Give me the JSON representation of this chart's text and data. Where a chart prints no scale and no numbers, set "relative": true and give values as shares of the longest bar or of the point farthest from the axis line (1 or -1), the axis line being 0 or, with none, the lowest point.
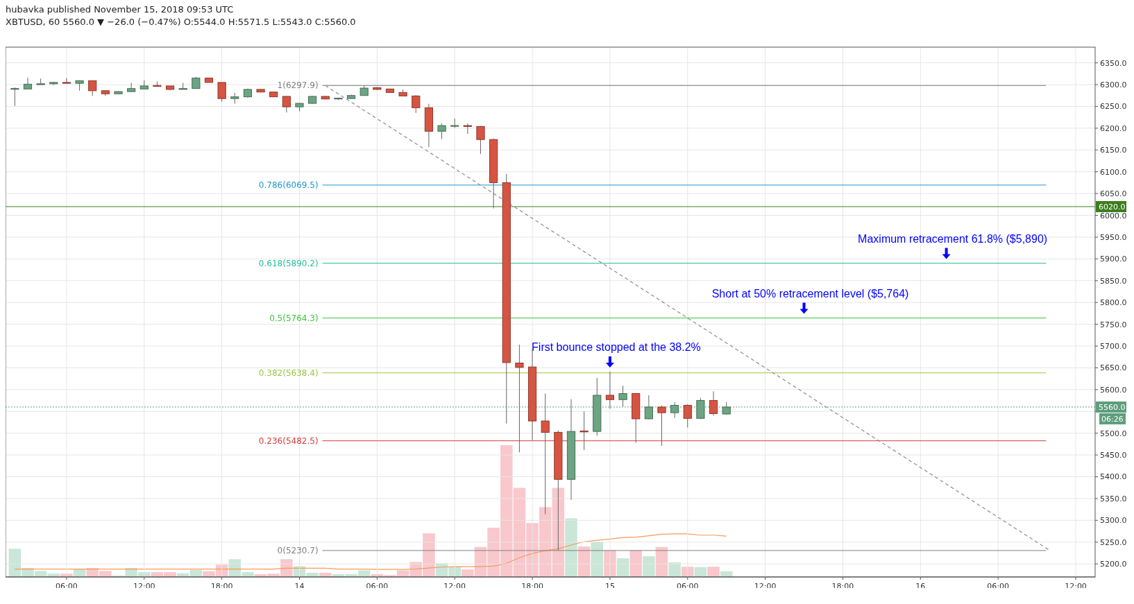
{
  "chart_data": [
    {
      "type": "candlestick",
      "title": "hubavka published November 15, 2018 09:53 UTC",
      "subtitle": "XBTUSD, 60  5560.0 ▼ −26.0 (−0.47%)  O:5544.0  H:5571.5  L:5543.0  C:5560.0",
      "x": [
        "2018-11-13T02:00",
        "2018-11-13T03:00",
        "2018-11-13T04:00",
        "2018-11-13T05:00",
        "2018-11-13T06:00",
        "2018-11-13T07:00",
        "2018-11-13T08:00",
        "2018-11-13T09:00",
        "2018-11-13T10:00",
        "2018-11-13T11:00",
        "2018-11-13T12:00",
        "2018-11-13T13:00",
        "2018-11-13T14:00",
        "2018-11-13T15:00",
        "2018-11-13T16:00",
        "2018-11-13T17:00",
        "2018-11-13T18:00",
        "2018-11-13T19:00",
        "2018-11-13T20:00",
        "2018-11-13T21:00",
        "2018-11-13T22:00",
        "2018-11-13T23:00",
        "2018-11-14T00:00",
        "2018-11-14T01:00",
        "2018-11-14T02:00",
        "2018-11-14T03:00",
        "2018-11-14T04:00",
        "2018-11-14T05:00",
        "2018-11-14T06:00",
        "2018-11-14T07:00",
        "2018-11-14T08:00",
        "2018-11-14T09:00",
        "2018-11-14T10:00",
        "2018-11-14T11:00",
        "2018-11-14T12:00",
        "2018-11-14T13:00",
        "2018-11-14T14:00",
        "2018-11-14T15:00",
        "2018-11-14T16:00",
        "2018-11-14T17:00",
        "2018-11-14T18:00",
        "2018-11-14T19:00",
        "2018-11-14T20:00",
        "2018-11-14T21:00",
        "2018-11-14T22:00",
        "2018-11-14T23:00",
        "2018-11-15T00:00",
        "2018-11-15T01:00",
        "2018-11-15T02:00",
        "2018-11-15T03:00",
        "2018-11-15T04:00",
        "2018-11-15T05:00",
        "2018-11-15T06:00",
        "2018-11-15T07:00",
        "2018-11-15T08:00",
        "2018-11-15T09:00"
      ],
      "ohlc": [
        [
          6290,
          6294,
          6251,
          6291
        ],
        [
          6290,
          6316,
          6290,
          6301
        ],
        [
          6300,
          6314,
          6300,
          6302
        ],
        [
          6302,
          6306,
          6299,
          6305
        ],
        [
          6305,
          6315,
          6303,
          6303
        ],
        [
          6303,
          6310,
          6286,
          6309
        ],
        [
          6309,
          6309,
          6274,
          6286
        ],
        [
          6286,
          6287,
          6274,
          6279
        ],
        [
          6279,
          6285,
          6279,
          6284
        ],
        [
          6284,
          6304,
          6284,
          6291
        ],
        [
          6290,
          6310,
          6290,
          6297
        ],
        [
          6298,
          6307,
          6295,
          6296
        ],
        [
          6297,
          6297,
          6287,
          6289
        ],
        [
          6289,
          6304,
          6289,
          6291
        ],
        [
          6291,
          6318,
          6291,
          6315
        ],
        [
          6315,
          6316,
          6305,
          6305
        ],
        [
          6305,
          6305,
          6261,
          6268
        ],
        [
          6268,
          6281,
          6256,
          6272
        ],
        [
          6272,
          6291,
          6270,
          6289
        ],
        [
          6289,
          6290,
          6282,
          6283
        ],
        [
          6283,
          6283,
          6272,
          6272
        ],
        [
          6273,
          6274,
          6236,
          6249
        ],
        [
          6249,
          6258,
          6239,
          6257
        ],
        [
          6257,
          6274,
          6256,
          6273
        ],
        [
          6273,
          6274,
          6266,
          6267
        ],
        [
          6267,
          6269,
          6265,
          6269
        ],
        [
          6268,
          6277,
          6268,
          6275
        ],
        [
          6275,
          6298,
          6275,
          6292
        ],
        [
          6293,
          6294,
          6288,
          6289
        ],
        [
          6290,
          6290,
          6282,
          6282
        ],
        [
          6282,
          6289,
          6274,
          6274
        ],
        [
          6274,
          6276,
          6235,
          6247
        ],
        [
          6247,
          6256,
          6157,
          6193
        ],
        [
          6193,
          6211,
          6175,
          6206
        ],
        [
          6205,
          6222,
          6201,
          6206
        ],
        [
          6206,
          6211,
          6187,
          6204
        ],
        [
          6204,
          6205,
          6141,
          6174
        ],
        [
          6174,
          6176,
          6016,
          6075
        ],
        [
          6075,
          6095,
          5522,
          5662
        ],
        [
          5661,
          5703,
          5456,
          5651
        ],
        [
          5652,
          5695,
          5484,
          5528
        ],
        [
          5528,
          5591,
          5314,
          5502
        ],
        [
          5502,
          5506,
          5230.7,
          5394
        ],
        [
          5394,
          5578,
          5347,
          5504
        ],
        [
          5505,
          5550,
          5461,
          5503
        ],
        [
          5504,
          5627,
          5494,
          5587
        ],
        [
          5587,
          5641,
          5556,
          5577
        ],
        [
          5577,
          5609,
          5561,
          5591
        ],
        [
          5591,
          5592,
          5478,
          5533
        ],
        [
          5533,
          5587,
          5532,
          5560
        ],
        [
          5560,
          5564,
          5471,
          5547
        ],
        [
          5547,
          5571,
          5535,
          5564
        ],
        [
          5564,
          5566,
          5513,
          5534
        ],
        [
          5534,
          5581,
          5532,
          5575
        ],
        [
          5575,
          5596,
          5540,
          5545
        ],
        [
          5544,
          5571.5,
          5543,
          5560
        ]
      ],
      "colors": [
        "#6ba583",
        "#6ba583",
        "#6ba583",
        "#6ba583",
        "#d75442",
        "#6ba583",
        "#d75442",
        "#d75442",
        "#6ba583",
        "#6ba583",
        "#6ba583",
        "#d75442",
        "#d75442",
        "#6ba583",
        "#6ba583",
        "#d75442",
        "#d75442",
        "#6ba583",
        "#6ba583",
        "#d75442",
        "#d75442",
        "#d75442",
        "#6ba583",
        "#6ba583",
        "#d75442",
        "#6ba583",
        "#6ba583",
        "#6ba583",
        "#d75442",
        "#d75442",
        "#d75442",
        "#d75442",
        "#d75442",
        "#6ba583",
        "#6ba583",
        "#d75442",
        "#d75442",
        "#d75442",
        "#d75442",
        "#d75442",
        "#d75442",
        "#d75442",
        "#d75442",
        "#6ba583",
        "#d75442",
        "#6ba583",
        "#d75442",
        "#6ba583",
        "#d75442",
        "#6ba583",
        "#d75442",
        "#6ba583",
        "#d75442",
        "#6ba583",
        "#d75442",
        "#6ba583"
      ],
      "series": [
        {
          "type": "line",
          "x": [
            "2018-11-14T02:00",
            "2018-11-16T10:00"
          ],
          "values": [
            6297.9,
            5230.7
          ],
          "color": "#8c8c8c",
          "line_style": "dashed"
        }
      ],
      "xlim": [
        "2018-11-13T01:17",
        "2018-11-16T13:30"
      ],
      "xticks": [
        {
          "value": "2018-11-13T06:00",
          "label": "06:00"
        },
        {
          "value": "2018-11-13T12:00",
          "label": "12:00"
        },
        {
          "value": "2018-11-13T18:00",
          "label": "18:00"
        },
        {
          "value": "2018-11-14T00:00",
          "label": "14"
        },
        {
          "value": "2018-11-14T06:00",
          "label": "06:00"
        },
        {
          "value": "2018-11-14T12:00",
          "label": "12:00"
        },
        {
          "value": "2018-11-14T18:00",
          "label": "18:00"
        },
        {
          "value": "2018-11-15T00:00",
          "label": "15"
        },
        {
          "value": "2018-11-15T06:00",
          "label": "06:00"
        },
        {
          "value": "2018-11-15T12:00",
          "label": "12:00"
        },
        {
          "value": "2018-11-15T18:00",
          "label": "18:00"
        },
        {
          "value": "2018-11-16T00:00",
          "label": "16"
        },
        {
          "value": "2018-11-16T06:00",
          "label": "06:00"
        },
        {
          "value": "2018-11-16T12:00",
          "label": "12:00"
        }
      ],
      "ylim": [
        5170,
        6386
      ],
      "yticks": [
        {
          "value": 5200,
          "label": "5200.0"
        },
        {
          "value": 5250,
          "label": "5250.0"
        },
        {
          "value": 5300,
          "label": "5300.0"
        },
        {
          "value": 5350,
          "label": "5350.0"
        },
        {
          "value": 5400,
          "label": "5400.0"
        },
        {
          "value": 5450,
          "label": "5450.0"
        },
        {
          "value": 5500,
          "label": "5500.0"
        },
        {
          "value": 5550,
          "label": null
        },
        {
          "value": 5600,
          "label": "5600.0"
        },
        {
          "value": 5650,
          "label": "5650.0"
        },
        {
          "value": 5700,
          "label": "5700.0"
        },
        {
          "value": 5750,
          "label": "5750.0"
        },
        {
          "value": 5800,
          "label": "5800.0"
        },
        {
          "value": 5850,
          "label": "5850.0"
        },
        {
          "value": 5900,
          "label": "5900.0"
        },
        {
          "value": 5950,
          "label": "5950.0"
        },
        {
          "value": 6000,
          "label": "6000.0"
        },
        {
          "value": 6050,
          "label": "6050.0"
        },
        {
          "value": 6100,
          "label": "6100.0"
        },
        {
          "value": 6150,
          "label": "6150.0"
        },
        {
          "value": 6200,
          "label": "6200.0"
        },
        {
          "value": 6250,
          "label": "6250.0"
        },
        {
          "value": 6300,
          "label": "6300.0"
        },
        {
          "value": 6350,
          "label": "6350.0"
        }
      ],
      "grid": true,
      "ref_lines": [
        {
          "axis": "y",
          "value": 6297.9,
          "label": "1(6297.9)",
          "color": "#808080"
        },
        {
          "axis": "y",
          "value": 6069.5,
          "label": "0.786(6069.5)",
          "color": "#2196d3"
        },
        {
          "axis": "y",
          "value": 5890.2,
          "label": "0.618(5890.2)",
          "color": "#26c196"
        },
        {
          "axis": "y",
          "value": 5764.3,
          "label": "0.5(5764.3)",
          "color": "#3cc43c"
        },
        {
          "axis": "y",
          "value": 5638.4,
          "label": "0.382(5638.4)",
          "color": "#96c83c"
        },
        {
          "axis": "y",
          "value": 5482.5,
          "label": "0.236(5482.5)",
          "color": "#d63a3a"
        },
        {
          "axis": "y",
          "value": 5230.7,
          "label": "0(5230.7)",
          "color": "#808080"
        },
        {
          "axis": "y",
          "value": 6020,
          "label": "6020.0",
          "color": "#3c7d1e",
          "line_style": "solid"
        },
        {
          "axis": "y",
          "value": 5560,
          "label": "5560.0",
          "color": "#5e9e7c",
          "line_style": "dotted"
        }
      ],
      "annotations": [
        {
          "text": "First bounce stopped at the 38.2%",
          "x": "2018-11-15T00:00",
          "y": 5641
        },
        {
          "text": "Short at 50% retracement level ($5,764)",
          "x": "2018-11-15T15:00",
          "y": 5764.3
        },
        {
          "text": "Maximum retracement 61.8% ($5,890)",
          "x": "2018-11-16T02:00",
          "y": 5890.2
        },
        "06:26"
      ]
    },
    {
      "type": "bar",
      "relative": true,
      "x": [
        "2018-11-13T02:00",
        "2018-11-13T03:00",
        "2018-11-13T04:00",
        "2018-11-13T05:00",
        "2018-11-13T06:00",
        "2018-11-13T07:00",
        "2018-11-13T08:00",
        "2018-11-13T09:00",
        "2018-11-13T10:00",
        "2018-11-13T11:00",
        "2018-11-13T12:00",
        "2018-11-13T13:00",
        "2018-11-13T14:00",
        "2018-11-13T15:00",
        "2018-11-13T16:00",
        "2018-11-13T17:00",
        "2018-11-13T18:00",
        "2018-11-13T19:00",
        "2018-11-13T20:00",
        "2018-11-13T21:00",
        "2018-11-13T22:00",
        "2018-11-13T23:00",
        "2018-11-14T00:00",
        "2018-11-14T01:00",
        "2018-11-14T02:00",
        "2018-11-14T03:00",
        "2018-11-14T04:00",
        "2018-11-14T05:00",
        "2018-11-14T06:00",
        "2018-11-14T07:00",
        "2018-11-14T08:00",
        "2018-11-14T09:00",
        "2018-11-14T10:00",
        "2018-11-14T11:00",
        "2018-11-14T12:00",
        "2018-11-14T13:00",
        "2018-11-14T14:00",
        "2018-11-14T15:00",
        "2018-11-14T16:00",
        "2018-11-14T17:00",
        "2018-11-14T18:00",
        "2018-11-14T19:00",
        "2018-11-14T20:00",
        "2018-11-14T21:00",
        "2018-11-14T22:00",
        "2018-11-14T23:00",
        "2018-11-15T00:00",
        "2018-11-15T01:00",
        "2018-11-15T02:00",
        "2018-11-15T03:00",
        "2018-11-15T04:00",
        "2018-11-15T05:00",
        "2018-11-15T06:00",
        "2018-11-15T07:00",
        "2018-11-15T08:00",
        "2018-11-15T09:00"
      ],
      "xlim": [
        "2018-11-13T01:17",
        "2018-11-16T13:30"
      ],
      "series": [
        {
          "type": "bar",
          "values": [
            0.214,
            0.068,
            0.046,
            0.025,
            0.025,
            0.06,
            0.068,
            0.046,
            0.011,
            0.068,
            0.036,
            0.036,
            0.036,
            0.028,
            0.053,
            0.043,
            0.093,
            0.135,
            0.036,
            0.021,
            0.025,
            0.135,
            0.082,
            0.032,
            0.032,
            0.021,
            0.021,
            0.05,
            0.021,
            0.014,
            0.05,
            0.114,
            0.331,
            0.103,
            0.078,
            0.057,
            0.228,
            0.374,
            1,
            0.676,
            0.409,
            0.53,
            0.676,
            0.445,
            0.231,
            0.267,
            0.203,
            0.142,
            0.203,
            0.157,
            0.228,
            0.11,
            0.078,
            0.075,
            0.078,
            0.043
          ],
          "colors": [
            "#c9e6d7",
            "#c9e6d7",
            "#c9e6d7",
            "#c9e6d7",
            "#f8c8cc",
            "#c9e6d7",
            "#f8c8cc",
            "#f8c8cc",
            "#c9e6d7",
            "#c9e6d7",
            "#c9e6d7",
            "#f8c8cc",
            "#f8c8cc",
            "#c9e6d7",
            "#c9e6d7",
            "#f8c8cc",
            "#f8c8cc",
            "#c9e6d7",
            "#c9e6d7",
            "#f8c8cc",
            "#f8c8cc",
            "#f8c8cc",
            "#c9e6d7",
            "#c9e6d7",
            "#f8c8cc",
            "#c9e6d7",
            "#c9e6d7",
            "#c9e6d7",
            "#f8c8cc",
            "#f8c8cc",
            "#f8c8cc",
            "#f8c8cc",
            "#f8c8cc",
            "#c9e6d7",
            "#c9e6d7",
            "#f8c8cc",
            "#f8c8cc",
            "#f8c8cc",
            "#f8c8cc",
            "#f8c8cc",
            "#f8c8cc",
            "#f8c8cc",
            "#f8c8cc",
            "#c9e6d7",
            "#f8c8cc",
            "#c9e6d7",
            "#f8c8cc",
            "#c9e6d7",
            "#f8c8cc",
            "#c9e6d7",
            "#f8c8cc",
            "#c9e6d7",
            "#f8c8cc",
            "#c9e6d7",
            "#f8c8cc",
            "#c9e6d7"
          ]
        },
        {
          "type": "line",
          "color": "#f79a5a",
          "values": [
            0.06,
            0.06,
            0.06,
            0.06,
            0.06,
            0.06,
            0.06,
            0.06,
            0.06,
            0.06,
            0.06,
            0.06,
            0.06,
            0.06,
            0.06,
            0.06,
            0.06,
            0.06,
            0.06,
            0.06,
            0.06,
            0.066,
            0.066,
            0.066,
            0.066,
            0.06,
            0.06,
            0.06,
            0.057,
            0.057,
            0.057,
            0.06,
            0.068,
            0.075,
            0.078,
            0.078,
            0.078,
            0.082,
            0.103,
            0.146,
            0.178,
            0.199,
            0.214,
            0.242,
            0.267,
            0.278,
            0.288,
            0.299,
            0.302,
            0.313,
            0.324,
            0.327,
            0.327,
            0.317,
            0.317,
            0.31
          ]
        }
      ]
    }
  ]
}
